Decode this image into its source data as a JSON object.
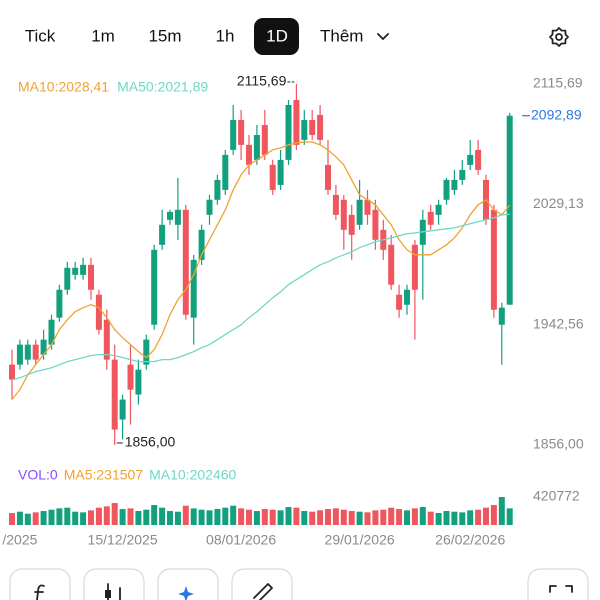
{
  "tabs": [
    "Tick",
    "1m",
    "15m",
    "1h",
    "1D",
    "Thêm"
  ],
  "chart_data": {
    "type": "candlestick",
    "categories": [
      null,
      "/2025",
      null,
      null,
      null,
      null,
      null,
      null,
      null,
      null,
      null,
      null,
      null,
      null,
      "15/12/2025",
      null,
      null,
      null,
      null,
      null,
      null,
      null,
      null,
      null,
      null,
      null,
      null,
      null,
      null,
      "08/01/2026",
      null,
      null,
      null,
      null,
      null,
      null,
      null,
      null,
      null,
      null,
      null,
      null,
      null,
      null,
      "29/01/2026",
      null,
      null,
      null,
      null,
      null,
      null,
      null,
      null,
      null,
      null,
      null,
      null,
      null,
      "26/02/2026",
      null,
      null,
      null,
      null,
      null
    ],
    "up_color": "#12a07e",
    "down_color": "#f0565d",
    "open": [
      1913.8,
      1913.8,
      1917.4,
      1928.2,
      1921.0,
      1928.2,
      1947.6,
      1967.7,
      1978.4,
      1978.4,
      1985.6,
      1964.1,
      1946.1,
      1917.4,
      1874.3,
      1913.8,
      1892.3,
      1913.8,
      1942.5,
      2000.0,
      2018.0,
      2014.4,
      2025.2,
      1947.6,
      1989.2,
      2021.6,
      2032.4,
      2039.5,
      2068.3,
      2089.8,
      2071.9,
      2061.1,
      2086.2,
      2057.5,
      2043.1,
      2061.1,
      2104.2,
      2075.5,
      2089.8,
      2093.4,
      2057.5,
      2035.9,
      2032.4,
      2021.6,
      2014.4,
      2032.4,
      2025.2,
      2010.8,
      2000.0,
      1964.1,
      1956.9,
      2000.0,
      2000.0,
      2023.7,
      2021.6,
      2032.4,
      2039.5,
      2046.7,
      2057.5,
      2068.3,
      2046.7,
      2025.2,
      1942.5,
      1956.9
    ],
    "high": [
      1924.6,
      1931.8,
      1931.8,
      1931.8,
      1938.9,
      1949.7,
      1971.3,
      1987.8,
      1987.8,
      1990.7,
      1990.7,
      1967.7,
      1953.3,
      1928.2,
      1892.3,
      1928.2,
      1917.4,
      1935.4,
      2000.0,
      2025.2,
      2025.2,
      2048.1,
      2028.8,
      1992.8,
      2014.4,
      2035.9,
      2050.3,
      2068.3,
      2100.6,
      2097.0,
      2079.0,
      2086.2,
      2097.0,
      2061.1,
      2068.3,
      2104.2,
      2115.69,
      2097.0,
      2097.0,
      2100.6,
      2075.5,
      2043.1,
      2035.9,
      2028.8,
      2046.7,
      2039.5,
      2032.4,
      2018.0,
      2007.2,
      1971.3,
      1971.3,
      2003.6,
      2025.2,
      2028.8,
      2032.4,
      2048.1,
      2053.9,
      2061.1,
      2075.5,
      2075.5,
      2050.3,
      2028.8,
      1958.4,
      2094.9
    ],
    "low": [
      1888.7,
      1910.2,
      1913.8,
      1913.8,
      1917.4,
      1924.6,
      1944.7,
      1964.1,
      1974.9,
      1974.9,
      1960.5,
      1935.4,
      1910.2,
      1856.0,
      1859.9,
      1870.7,
      1885.1,
      1910.2,
      1938.9,
      1996.4,
      2014.4,
      2003.6,
      1946.1,
      1928.2,
      1985.6,
      2014.4,
      2028.8,
      2035.9,
      2064.7,
      2061.1,
      2050.3,
      2057.5,
      2061.1,
      2035.9,
      2039.5,
      2057.5,
      2068.3,
      2071.9,
      2075.5,
      2071.9,
      2035.9,
      2018.0,
      1996.4,
      1989.2,
      2010.8,
      2014.4,
      1996.4,
      1989.2,
      1967.7,
      1947.6,
      1949.7,
      1931.8,
      1960.5,
      2010.8,
      2014.4,
      2028.8,
      2035.9,
      2043.1,
      2053.9,
      2050.3,
      2014.4,
      1947.6,
      1913.8,
      1956.9
    ],
    "close": [
      1903.0,
      1928.2,
      1928.2,
      1917.4,
      1931.8,
      1946.1,
      1967.7,
      1983.5,
      1983.5,
      1985.6,
      1967.7,
      1938.9,
      1917.4,
      1867.1,
      1888.7,
      1895.8,
      1910.2,
      1931.8,
      1996.4,
      2014.4,
      2023.7,
      2025.2,
      1949.7,
      1989.2,
      2010.8,
      2032.4,
      2046.7,
      2064.7,
      2089.8,
      2071.9,
      2057.5,
      2079.0,
      2064.7,
      2039.5,
      2061.1,
      2100.6,
      2071.9,
      2089.8,
      2079.0,
      2075.5,
      2039.5,
      2021.6,
      2010.8,
      2007.2,
      2032.4,
      2021.6,
      2003.6,
      1996.4,
      1971.3,
      1953.3,
      1967.7,
      1967.7,
      2018.0,
      2014.4,
      2028.8,
      2046.7,
      2046.7,
      2053.9,
      2064.7,
      2053.9,
      2018.0,
      1953.3,
      1954.8,
      2092.89
    ],
    "series": [
      {
        "name": "MA10:2028,41",
        "color": "#f0a232",
        "values": [
          1888.7,
          1895.8,
          1906.6,
          1913.8,
          1921.0,
          1928.2,
          1939.0,
          1946.1,
          1951.9,
          1954.8,
          1956.9,
          1954.8,
          1947.6,
          1939.0,
          1933.2,
          1928.2,
          1923.2,
          1918.9,
          1924.6,
          1935.4,
          1949.7,
          1960.5,
          1967.7,
          1978.5,
          1992.8,
          2003.6,
          2014.4,
          2025.2,
          2039.5,
          2050.3,
          2057.5,
          2061.1,
          2064.7,
          2068.3,
          2069.7,
          2071.9,
          2073.3,
          2074.0,
          2074.0,
          2071.9,
          2068.3,
          2063.3,
          2057.5,
          2046.7,
          2035.9,
          2032.4,
          2028.8,
          2021.6,
          2014.4,
          2003.6,
          1996.4,
          1992.8,
          1992.8,
          1992.8,
          1996.4,
          2000.0,
          2005.0,
          2012.2,
          2021.6,
          2028.8,
          2032.4,
          2025.2,
          2021.6,
          2028.41
        ]
      },
      {
        "name": "MA50:2021,89",
        "color": "#72d6c6",
        "values": [
          1903.0,
          1904.4,
          1906.6,
          1908.8,
          1910.2,
          1911.6,
          1913.8,
          1916.0,
          1917.4,
          1918.9,
          1920.3,
          1921.0,
          1921.0,
          1920.3,
          1918.9,
          1917.4,
          1916.0,
          1916.0,
          1916.0,
          1917.4,
          1917.4,
          1918.9,
          1921.0,
          1923.2,
          1926.0,
          1928.2,
          1931.8,
          1935.4,
          1939.0,
          1942.5,
          1947.6,
          1951.9,
          1956.9,
          1961.9,
          1966.2,
          1971.3,
          1974.9,
          1978.5,
          1982.1,
          1985.6,
          1987.8,
          1990.7,
          1992.8,
          1995.0,
          1997.9,
          2000.0,
          2002.2,
          2003.6,
          2005.0,
          2006.5,
          2007.9,
          2008.6,
          2009.4,
          2010.1,
          2010.8,
          2011.5,
          2012.2,
          2013.7,
          2015.1,
          2016.6,
          2018.0,
          2019.4,
          2021.6,
          2021.89
        ]
      }
    ],
    "ylim": [
      1856.0,
      2115.69
    ],
    "yticks": [
      {
        "value": 2115.69,
        "label": "2115,69"
      },
      {
        "value": 2029.13,
        "label": "2029,13"
      },
      {
        "value": 1942.56,
        "label": "1942,56"
      },
      {
        "value": 1856.0,
        "label": "1856,00"
      }
    ],
    "high_label": "2115,69",
    "low_label": "1856,00",
    "last_label": "2092,89",
    "last_color": "#2a78e4",
    "volume": {
      "legend": [
        {
          "text": "VOL:0",
          "color": "#8a4dfa"
        },
        {
          "text": "MA5:231507",
          "color": "#f0a232"
        },
        {
          "text": "MA10:202460",
          "color": "#72d6c6"
        }
      ],
      "values": [
        180000,
        200000,
        170000,
        190000,
        210000,
        230000,
        250000,
        260000,
        200000,
        190000,
        220000,
        260000,
        280000,
        330000,
        240000,
        250000,
        210000,
        230000,
        300000,
        260000,
        210000,
        200000,
        290000,
        250000,
        230000,
        220000,
        240000,
        260000,
        290000,
        250000,
        230000,
        210000,
        240000,
        230000,
        220000,
        270000,
        260000,
        210000,
        200000,
        220000,
        240000,
        250000,
        230000,
        210000,
        200000,
        190000,
        220000,
        230000,
        260000,
        240000,
        220000,
        250000,
        270000,
        200000,
        180000,
        210000,
        200000,
        190000,
        220000,
        230000,
        260000,
        300000,
        420772,
        250000
      ],
      "ylim": [
        0,
        420772
      ],
      "yticks": [
        420772
      ]
    }
  }
}
